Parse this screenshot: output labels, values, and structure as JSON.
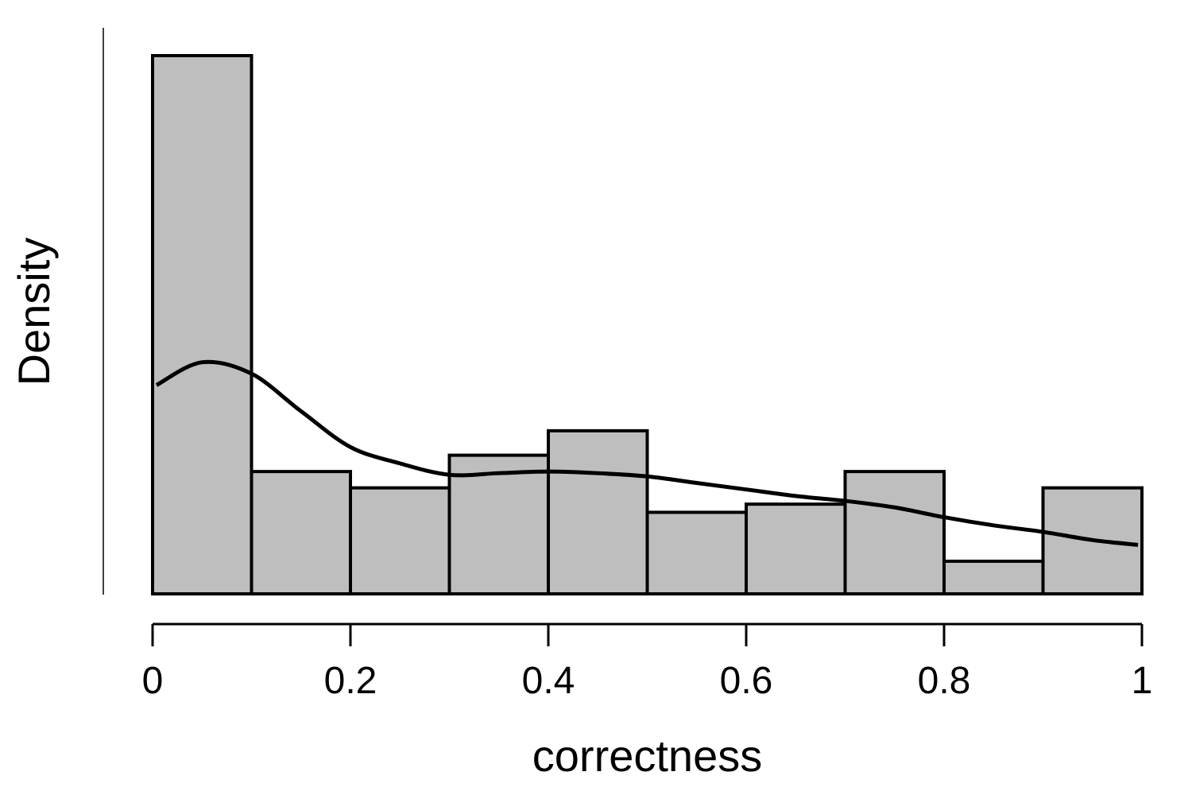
{
  "chart_data": {
    "type": "bar",
    "subtype": "histogram",
    "xlabel": "correctness",
    "ylabel": "Density",
    "xlim": [
      0,
      1
    ],
    "ylim": [
      0,
      3.3
    ],
    "x_ticks": [
      "0",
      "0.2",
      "0.4",
      "0.6",
      "0.8",
      "1"
    ],
    "x_tick_values": [
      0,
      0.2,
      0.4,
      0.6,
      0.8,
      1
    ],
    "y_ticks_shown": false,
    "grid": false,
    "legend": "none",
    "bins": [
      {
        "x0": 0.0,
        "x1": 0.1,
        "value": 3.3
      },
      {
        "x0": 0.1,
        "x1": 0.2,
        "value": 0.75
      },
      {
        "x0": 0.2,
        "x1": 0.3,
        "value": 0.65
      },
      {
        "x0": 0.3,
        "x1": 0.4,
        "value": 0.85
      },
      {
        "x0": 0.4,
        "x1": 0.5,
        "value": 1.0
      },
      {
        "x0": 0.5,
        "x1": 0.6,
        "value": 0.5
      },
      {
        "x0": 0.6,
        "x1": 0.7,
        "value": 0.55
      },
      {
        "x0": 0.7,
        "x1": 0.8,
        "value": 0.75
      },
      {
        "x0": 0.8,
        "x1": 0.9,
        "value": 0.2
      },
      {
        "x0": 0.9,
        "x1": 1.0,
        "value": 0.65
      }
    ],
    "density_curve": {
      "x": [
        0.004,
        0.05,
        0.1,
        0.15,
        0.2,
        0.25,
        0.3,
        0.35,
        0.4,
        0.45,
        0.5,
        0.55,
        0.6,
        0.65,
        0.7,
        0.75,
        0.8,
        0.85,
        0.9,
        0.95,
        0.996
      ],
      "y": [
        1.28,
        1.42,
        1.35,
        1.12,
        0.9,
        0.8,
        0.73,
        0.74,
        0.75,
        0.74,
        0.72,
        0.68,
        0.64,
        0.6,
        0.57,
        0.53,
        0.47,
        0.42,
        0.38,
        0.33,
        0.3
      ]
    },
    "colors": {
      "bar_fill": "#bebebe",
      "bar_stroke": "#000000",
      "curve": "#000000",
      "axis": "#000000"
    }
  }
}
